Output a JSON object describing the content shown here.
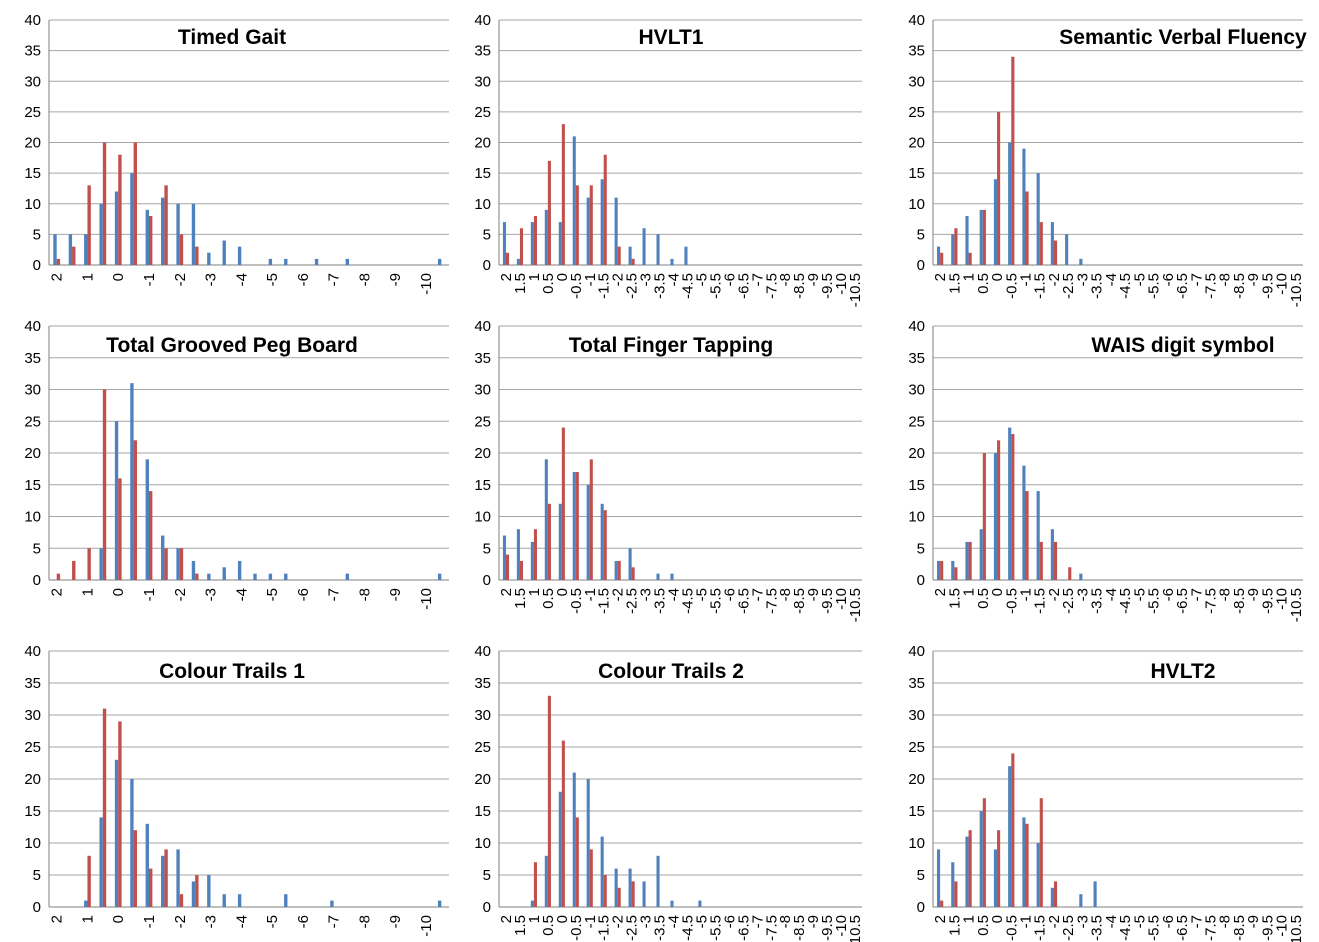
{
  "colors": {
    "series_a": "#4F81BD",
    "series_b": "#C0504D",
    "grid": "#A6A6A6",
    "axis": "#7F7F7F"
  },
  "chart_data": [
    {
      "type": "bar",
      "title": "Timed Gait",
      "ylim": [
        0,
        40
      ],
      "yticks": [
        "0",
        "5",
        "10",
        "15",
        "20",
        "25",
        "30",
        "35",
        "40"
      ],
      "categories": [
        2,
        1.5,
        1,
        0.5,
        0,
        -0.5,
        -1,
        -1.5,
        -2,
        -2.5,
        -3,
        -3.5,
        -4,
        -4.5,
        -5,
        -5.5,
        -6,
        -6.5,
        -7,
        -7.5,
        -8,
        -8.5,
        -9,
        -9.5,
        -10,
        -10.5
      ],
      "tick_labels": [
        "2",
        "1",
        "0",
        "-1",
        "-2",
        "-3",
        "-4",
        "-5",
        "-6",
        "-7",
        "-8",
        "-9",
        "-10"
      ],
      "series": [
        {
          "color": "#4F81BD",
          "values": [
            5,
            5,
            5,
            10,
            12,
            15,
            9,
            11,
            10,
            10,
            2,
            4,
            3,
            0,
            1,
            1,
            0,
            1,
            0,
            1,
            0,
            0,
            0,
            0,
            0,
            1
          ]
        },
        {
          "color": "#C0504D",
          "values": [
            1,
            3,
            13,
            20,
            18,
            20,
            8,
            13,
            5,
            3,
            0,
            0,
            0,
            0,
            0,
            0,
            0,
            0,
            0,
            0,
            0,
            0,
            0,
            0,
            0,
            0
          ]
        }
      ],
      "grid": true,
      "legend": "none"
    },
    {
      "type": "bar",
      "title": "HVLT1",
      "ylim": [
        0,
        40
      ],
      "yticks": [
        "0",
        "5",
        "10",
        "15",
        "20",
        "25",
        "30",
        "35",
        "40"
      ],
      "categories": [
        2,
        1.5,
        1,
        0.5,
        0,
        -0.5,
        -1,
        -1.5,
        -2,
        -2.5,
        -3,
        -3.5,
        -4,
        -4.5,
        -5,
        -5.5,
        -6,
        -6.5,
        -7,
        -7.5,
        -8,
        -8.5,
        -9,
        -9.5,
        -10,
        -10.5
      ],
      "tick_labels": [
        "2",
        "1.5",
        "1",
        "0.5",
        "0",
        "-0.5",
        "-1",
        "-1.5",
        "-2",
        "-2.5",
        "-3",
        "-3.5",
        "-4",
        "-4.5",
        "-5",
        "-5.5",
        "-6",
        "-6.5",
        "-7",
        "-7.5",
        "-8",
        "-8.5",
        "-9",
        "-9.5",
        "-10",
        "-10.5"
      ],
      "series": [
        {
          "color": "#4F81BD",
          "values": [
            7,
            1,
            7,
            9,
            7,
            21,
            11,
            14,
            11,
            3,
            6,
            5,
            1,
            3,
            0,
            0,
            0,
            0,
            0,
            0,
            0,
            0,
            0,
            0,
            0,
            0
          ]
        },
        {
          "color": "#C0504D",
          "values": [
            2,
            6,
            8,
            17,
            23,
            13,
            13,
            18,
            3,
            1,
            0,
            0,
            0,
            0,
            0,
            0,
            0,
            0,
            0,
            0,
            0,
            0,
            0,
            0,
            0,
            0
          ]
        }
      ],
      "grid": true,
      "legend": "none"
    },
    {
      "type": "bar",
      "title": "Semantic Verbal Fluency",
      "ylim": [
        0,
        40
      ],
      "yticks": [
        "0",
        "5",
        "10",
        "15",
        "20",
        "25",
        "30",
        "35",
        "40"
      ],
      "categories": [
        2,
        1.5,
        1,
        0.5,
        0,
        -0.5,
        -1,
        -1.5,
        -2,
        -2.5,
        -3,
        -3.5,
        -4,
        -4.5,
        -5,
        -5.5,
        -6,
        -6.5,
        -7,
        -7.5,
        -8,
        -8.5,
        -9,
        -9.5,
        -10,
        -10.5
      ],
      "tick_labels": [
        "2",
        "1.5",
        "1",
        "0.5",
        "0",
        "-0.5",
        "-1",
        "-1.5",
        "-2",
        "-2.5",
        "-3",
        "-3.5",
        "-4",
        "-4.5",
        "-5",
        "-5.5",
        "-6",
        "-6.5",
        "-7",
        "-7.5",
        "-8",
        "-8.5",
        "-9",
        "-9.5",
        "-10",
        "-10.5"
      ],
      "series": [
        {
          "color": "#4F81BD",
          "values": [
            3,
            5,
            8,
            9,
            14,
            20,
            19,
            15,
            7,
            5,
            1,
            0,
            0,
            0,
            0,
            0,
            0,
            0,
            0,
            0,
            0,
            0,
            0,
            0,
            0,
            0
          ]
        },
        {
          "color": "#C0504D",
          "values": [
            2,
            6,
            2,
            9,
            25,
            34,
            12,
            7,
            4,
            0,
            0,
            0,
            0,
            0,
            0,
            0,
            0,
            0,
            0,
            0,
            0,
            0,
            0,
            0,
            0,
            0
          ]
        }
      ],
      "grid": true,
      "legend": "none"
    },
    {
      "type": "bar",
      "title": "Total Grooved Peg Board",
      "ylim": [
        0,
        40
      ],
      "yticks": [
        "0",
        "5",
        "10",
        "15",
        "20",
        "25",
        "30",
        "35",
        "40"
      ],
      "categories": [
        2,
        1.5,
        1,
        0.5,
        0,
        -0.5,
        -1,
        -1.5,
        -2,
        -2.5,
        -3,
        -3.5,
        -4,
        -4.5,
        -5,
        -5.5,
        -6,
        -6.5,
        -7,
        -7.5,
        -8,
        -8.5,
        -9,
        -9.5,
        -10,
        -10.5
      ],
      "tick_labels": [
        "2",
        "1",
        "0",
        "-1",
        "-2",
        "-3",
        "-4",
        "-5",
        "-6",
        "-7",
        "-8",
        "-9",
        "-10"
      ],
      "series": [
        {
          "color": "#4F81BD",
          "values": [
            0,
            0,
            0,
            5,
            25,
            31,
            19,
            7,
            5,
            3,
            1,
            2,
            3,
            1,
            1,
            1,
            0,
            0,
            0,
            1,
            0,
            0,
            0,
            0,
            0,
            1
          ]
        },
        {
          "color": "#C0504D",
          "values": [
            1,
            3,
            5,
            30,
            16,
            22,
            14,
            5,
            5,
            1,
            0,
            0,
            0,
            0,
            0,
            0,
            0,
            0,
            0,
            0,
            0,
            0,
            0,
            0,
            0,
            0
          ]
        }
      ],
      "grid": true,
      "legend": "none"
    },
    {
      "type": "bar",
      "title": "Total Finger Tapping",
      "ylim": [
        0,
        40
      ],
      "yticks": [
        "0",
        "5",
        "10",
        "15",
        "20",
        "25",
        "30",
        "35",
        "40"
      ],
      "categories": [
        2,
        1.5,
        1,
        0.5,
        0,
        -0.5,
        -1,
        -1.5,
        -2,
        -2.5,
        -3,
        -3.5,
        -4,
        -4.5,
        -5,
        -5.5,
        -6,
        -6.5,
        -7,
        -7.5,
        -8,
        -8.5,
        -9,
        -9.5,
        -10,
        -10.5
      ],
      "tick_labels": [
        "2",
        "1.5",
        "1",
        "0.5",
        "0",
        "-0.5",
        "-1",
        "-1.5",
        "-2",
        "-2.5",
        "-3",
        "-3.5",
        "-4",
        "-4.5",
        "-5",
        "-5.5",
        "-6",
        "-6.5",
        "-7",
        "-7.5",
        "-8",
        "-8.5",
        "-9",
        "-9.5",
        "-10",
        "-10.5"
      ],
      "series": [
        {
          "color": "#4F81BD",
          "values": [
            7,
            8,
            6,
            19,
            12,
            17,
            15,
            12,
            3,
            5,
            0,
            1,
            1,
            0,
            0,
            0,
            0,
            0,
            0,
            0,
            0,
            0,
            0,
            0,
            0,
            0
          ]
        },
        {
          "color": "#C0504D",
          "values": [
            4,
            3,
            8,
            12,
            24,
            17,
            19,
            11,
            3,
            2,
            0,
            0,
            0,
            0,
            0,
            0,
            0,
            0,
            0,
            0,
            0,
            0,
            0,
            0,
            0,
            0
          ]
        }
      ],
      "grid": true,
      "legend": "none"
    },
    {
      "type": "bar",
      "title": "WAIS digit symbol",
      "ylim": [
        0,
        40
      ],
      "yticks": [
        "0",
        "5",
        "10",
        "15",
        "20",
        "25",
        "30",
        "35",
        "40"
      ],
      "categories": [
        2,
        1.5,
        1,
        0.5,
        0,
        -0.5,
        -1,
        -1.5,
        -2,
        -2.5,
        -3,
        -3.5,
        -4,
        -4.5,
        -5,
        -5.5,
        -6,
        -6.5,
        -7,
        -7.5,
        -8,
        -8.5,
        -9,
        -9.5,
        -10,
        -10.5
      ],
      "tick_labels": [
        "2",
        "1.5",
        "1",
        "0.5",
        "0",
        "-0.5",
        "-1",
        "-1.5",
        "-2",
        "-2.5",
        "-3",
        "-3.5",
        "-4",
        "-4.5",
        "-5",
        "-5.5",
        "-6",
        "-6.5",
        "-7",
        "-7.5",
        "-8",
        "-8.5",
        "-9",
        "-9.5",
        "-10",
        "-10.5"
      ],
      "series": [
        {
          "color": "#4F81BD",
          "values": [
            3,
            3,
            6,
            8,
            20,
            24,
            18,
            14,
            8,
            0,
            1,
            0,
            0,
            0,
            0,
            0,
            0,
            0,
            0,
            0,
            0,
            0,
            0,
            0,
            0,
            0
          ]
        },
        {
          "color": "#C0504D",
          "values": [
            3,
            2,
            6,
            20,
            22,
            23,
            14,
            6,
            6,
            2,
            0,
            0,
            0,
            0,
            0,
            0,
            0,
            0,
            0,
            0,
            0,
            0,
            0,
            0,
            0,
            0
          ]
        }
      ],
      "grid": true,
      "legend": "none"
    },
    {
      "type": "bar",
      "title": "Colour Trails 1",
      "ylim": [
        0,
        40
      ],
      "yticks": [
        "0",
        "5",
        "10",
        "15",
        "20",
        "25",
        "30",
        "35",
        "40"
      ],
      "categories": [
        2,
        1.5,
        1,
        0.5,
        0,
        -0.5,
        -1,
        -1.5,
        -2,
        -2.5,
        -3,
        -3.5,
        -4,
        -4.5,
        -5,
        -5.5,
        -6,
        -6.5,
        -7,
        -7.5,
        -8,
        -8.5,
        -9,
        -9.5,
        -10,
        -10.5
      ],
      "tick_labels": [
        "2",
        "1",
        "0",
        "-1",
        "-2",
        "-3",
        "-4",
        "-5",
        "-6",
        "-7",
        "-8",
        "-9",
        "-10"
      ],
      "series": [
        {
          "color": "#4F81BD",
          "values": [
            0,
            0,
            1,
            14,
            23,
            20,
            13,
            8,
            9,
            4,
            5,
            2,
            2,
            0,
            0,
            2,
            0,
            0,
            1,
            0,
            0,
            0,
            0,
            0,
            0,
            1
          ]
        },
        {
          "color": "#C0504D",
          "values": [
            0,
            0,
            8,
            31,
            29,
            12,
            6,
            9,
            2,
            5,
            0,
            0,
            0,
            0,
            0,
            0,
            0,
            0,
            0,
            0,
            0,
            0,
            0,
            0,
            0,
            0
          ]
        }
      ],
      "grid": true,
      "legend": "none"
    },
    {
      "type": "bar",
      "title": "Colour Trails 2",
      "ylim": [
        0,
        40
      ],
      "yticks": [
        "0",
        "5",
        "10",
        "15",
        "20",
        "25",
        "30",
        "35",
        "40"
      ],
      "categories": [
        2,
        1.5,
        1,
        0.5,
        0,
        -0.5,
        -1,
        -1.5,
        -2,
        -2.5,
        -3,
        -3.5,
        -4,
        -4.5,
        -5,
        -5.5,
        -6,
        -6.5,
        -7,
        -7.5,
        -8,
        -8.5,
        -9,
        -9.5,
        -10,
        -10.5
      ],
      "tick_labels": [
        "2",
        "1.5",
        "1",
        "0.5",
        "0",
        "-0.5",
        "-1",
        "-1.5",
        "-2",
        "-2.5",
        "-3",
        "-3.5",
        "-4",
        "-4.5",
        "-5",
        "-5.5",
        "-6",
        "-6.5",
        "-7",
        "-7.5",
        "-8",
        "-8.5",
        "-9",
        "-9.5",
        "-10",
        "-10.5"
      ],
      "series": [
        {
          "color": "#4F81BD",
          "values": [
            0,
            0,
            1,
            8,
            18,
            21,
            20,
            11,
            6,
            6,
            4,
            8,
            1,
            0,
            1,
            0,
            0,
            0,
            0,
            0,
            0,
            0,
            0,
            0,
            0,
            0
          ]
        },
        {
          "color": "#C0504D",
          "values": [
            0,
            0,
            7,
            33,
            26,
            14,
            9,
            5,
            3,
            4,
            0,
            0,
            0,
            0,
            0,
            0,
            0,
            0,
            0,
            0,
            0,
            0,
            0,
            0,
            0,
            0
          ]
        }
      ],
      "grid": true,
      "legend": "none"
    },
    {
      "type": "bar",
      "title": "HVLT2",
      "ylim": [
        0,
        40
      ],
      "yticks": [
        "0",
        "5",
        "10",
        "15",
        "20",
        "25",
        "30",
        "35",
        "40"
      ],
      "categories": [
        2,
        1.5,
        1,
        0.5,
        0,
        -0.5,
        -1,
        -1.5,
        -2,
        -2.5,
        -3,
        -3.5,
        -4,
        -4.5,
        -5,
        -5.5,
        -6,
        -6.5,
        -7,
        -7.5,
        -8,
        -8.5,
        -9,
        -9.5,
        -10,
        -10.5
      ],
      "tick_labels": [
        "2",
        "1.5",
        "1",
        "0.5",
        "0",
        "-0.5",
        "-1",
        "-1.5",
        "-2",
        "-2.5",
        "-3",
        "-3.5",
        "-4",
        "-4.5",
        "-5",
        "-5.5",
        "-6",
        "-6.5",
        "-7",
        "-7.5",
        "-8",
        "-8.5",
        "-9",
        "-9.5",
        "-10",
        "-10.5"
      ],
      "series": [
        {
          "color": "#4F81BD",
          "values": [
            9,
            7,
            11,
            15,
            9,
            22,
            14,
            10,
            3,
            0,
            2,
            4,
            0,
            0,
            0,
            0,
            0,
            0,
            0,
            0,
            0,
            0,
            0,
            0,
            0,
            0
          ]
        },
        {
          "color": "#C0504D",
          "values": [
            1,
            4,
            12,
            17,
            12,
            24,
            13,
            17,
            4,
            0,
            0,
            0,
            0,
            0,
            0,
            0,
            0,
            0,
            0,
            0,
            0,
            0,
            0,
            0,
            0,
            0
          ]
        }
      ],
      "grid": true,
      "legend": "none"
    }
  ]
}
